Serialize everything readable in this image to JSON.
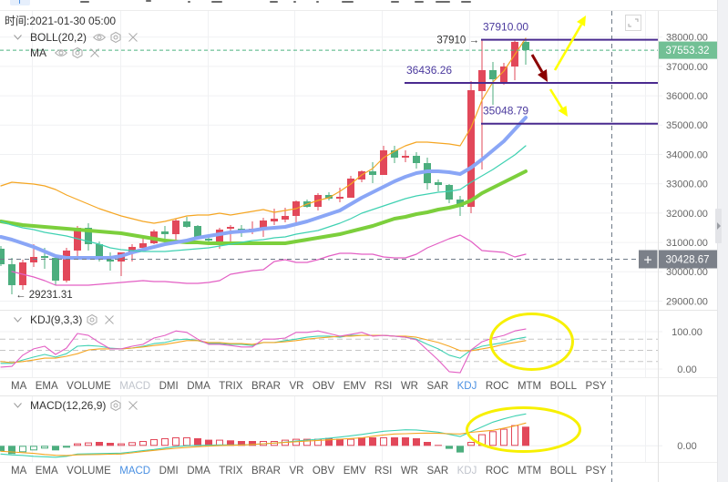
{
  "app": {
    "crosshair_time_label": "时间:2021-01-30 05:00"
  },
  "legend": {
    "main": [
      {
        "name": "BOLL(20,2)",
        "icons": [
          "chevron-down-icon",
          "eye-icon",
          "settings-icon",
          "close-icon"
        ]
      },
      {
        "name": "MA",
        "icons": [
          "eye-icon",
          "settings-icon",
          "close-icon"
        ]
      }
    ],
    "kdj": {
      "name": "KDJ(9,3,3)",
      "icons": [
        "chevron-down-icon",
        "settings-icon",
        "close-icon"
      ]
    },
    "macd": {
      "name": "MACD(12,26,9)",
      "icons": [
        "chevron-down-icon",
        "settings-icon",
        "close-icon"
      ]
    }
  },
  "price_axis": {
    "ticks": [
      "38000.00",
      "37000.00",
      "36000.00",
      "35000.00",
      "34000.00",
      "33000.00",
      "32000.00",
      "31000.00",
      "30000.00",
      "29000.00"
    ],
    "current_price": "37553.32",
    "crosshair_price": "30428.67",
    "crosshair_plus": "+"
  },
  "kdj_axis": {
    "ticks": [
      "100.00",
      "0.00"
    ]
  },
  "macd_axis": {
    "ticks": [
      "0.00"
    ]
  },
  "annotations": {
    "levels": [
      {
        "label": "37910.00",
        "price": 37910,
        "start_index": 44
      },
      {
        "label": "36436.26",
        "price": 36436.26,
        "start_index": 37
      },
      {
        "label": "35048.79",
        "price": 35048.79,
        "start_index": 44
      }
    ],
    "high_marker": {
      "text": "37910 →",
      "price": 37910,
      "index": 44
    },
    "low_marker": {
      "text": "← 29231.31",
      "price": 29231.31,
      "index": 1
    }
  },
  "indicator_tabs": [
    "MA",
    "EMA",
    "VOLUME",
    "MACD",
    "DMI",
    "DMA",
    "TRIX",
    "BRAR",
    "VR",
    "OBV",
    "EMV",
    "RSI",
    "WR",
    "SAR",
    "KDJ",
    "ROC",
    "MTM",
    "BOLL",
    "PSY"
  ],
  "kdj_panel": {
    "active_tab": "KDJ",
    "disabled_tab": "MACD"
  },
  "macd_panel": {
    "active_tab": "MACD",
    "disabled_tab": "KDJ"
  },
  "colors": {
    "candle_up": "#e2485a",
    "candle_down": "#4cae7e",
    "annotation_line": "#4a2a8f",
    "annotation_text": "#4b3a9e",
    "highlight_yellow": "#ffff00",
    "arrow_dark_red": "#8b0000",
    "current_price_bg": "#72c095",
    "crosshair_bg": "#7b8089",
    "tab_active": "#4a90e2",
    "tab_disabled": "#c0c4cc"
  },
  "chart_data": [
    {
      "type": "candlestick",
      "title": "",
      "xlabel": "",
      "ylabel": "",
      "crosshair_time": "2021-01-30 05:00",
      "ylim": [
        29000,
        38000
      ],
      "yticks": [
        38000,
        37000,
        36000,
        35000,
        34000,
        33000,
        32000,
        31000,
        30000,
        29000
      ],
      "grid": true,
      "legend": [
        "BOLL(20,2)",
        "MA"
      ],
      "current_price": 37553.32,
      "candles_ohlc": [
        [
          30786,
          30879,
          30196,
          30258
        ],
        [
          30258,
          30475,
          29231.31,
          29544
        ],
        [
          29544,
          30413,
          29388,
          30320
        ],
        [
          30320,
          30941,
          30165,
          30506
        ],
        [
          30537,
          30817,
          30103,
          30475
        ],
        [
          30475,
          30475,
          29544,
          29699
        ],
        [
          29699,
          30817,
          29637,
          30724
        ],
        [
          30724,
          31562,
          30506,
          31500
        ],
        [
          31500,
          31655,
          30724,
          30941
        ],
        [
          30941,
          31034,
          30351,
          30475
        ],
        [
          30413,
          30661,
          30040,
          30351
        ],
        [
          30351,
          30661,
          29854,
          30661
        ],
        [
          30630,
          30941,
          30351,
          30848
        ],
        [
          30817,
          31127,
          30786,
          30972
        ],
        [
          30972,
          31438,
          30941,
          31376
        ],
        [
          31376,
          31562,
          31096,
          31283
        ],
        [
          31283,
          31810,
          31096,
          31748
        ],
        [
          31717,
          31873,
          31500,
          31531
        ],
        [
          31562,
          31593,
          31096,
          31127
        ],
        [
          31127,
          31283,
          30972,
          31065
        ],
        [
          31003,
          31500,
          30786,
          31438
        ],
        [
          31469,
          31593,
          31034,
          31531
        ],
        [
          31469,
          31593,
          31190,
          31407
        ],
        [
          31438,
          31717,
          31283,
          31469
        ],
        [
          31438,
          31841,
          31190,
          31748
        ],
        [
          31717,
          32152,
          31593,
          31810
        ],
        [
          31779,
          32183,
          31686,
          31904
        ],
        [
          31904,
          32431,
          31655,
          32400
        ],
        [
          32400,
          32462,
          32183,
          32214
        ],
        [
          32214,
          32680,
          32090,
          32618
        ],
        [
          32618,
          32711,
          32431,
          32493
        ],
        [
          32493,
          32866,
          32369,
          32556
        ],
        [
          32524,
          33270,
          32524,
          33177
        ],
        [
          33146,
          33457,
          33053,
          33425
        ],
        [
          33425,
          33736,
          33022,
          33301
        ],
        [
          33301,
          34295,
          33301,
          34140
        ],
        [
          34140,
          34295,
          33705,
          33891
        ],
        [
          33891,
          34140,
          33736,
          33953
        ],
        [
          33953,
          34078,
          33519,
          33705
        ],
        [
          33705,
          33891,
          32804,
          33022
        ],
        [
          33053,
          33146,
          32742,
          32959
        ],
        [
          32959,
          32990,
          32338,
          32462
        ],
        [
          32462,
          32587,
          31904,
          32214
        ],
        [
          32214,
          36500,
          31997,
          36190
        ],
        [
          36159,
          37910,
          33488,
          36873
        ],
        [
          36873,
          37152,
          35693,
          36562
        ],
        [
          36407,
          37121,
          36376,
          36997
        ],
        [
          36997,
          37880,
          36531,
          37836
        ],
        [
          37836,
          37890,
          37059,
          37553.32
        ]
      ],
      "series": [
        {
          "name": "MA (green)",
          "color": "#7ccf3c",
          "width": 4,
          "values": [
            31717,
            31655,
            31593,
            31562,
            31531,
            31500,
            31469,
            31438,
            31407,
            31376,
            31344,
            31314,
            31252,
            31190,
            31127,
            31065,
            31034,
            31003,
            31003,
            30972,
            30972,
            30972,
            30972,
            30972,
            30972,
            30972,
            30972,
            31034,
            31096,
            31158,
            31221,
            31283,
            31376,
            31469,
            31562,
            31686,
            31810,
            31873,
            31966,
            32028,
            32121,
            32183,
            32276,
            32431,
            32680,
            32866,
            33053,
            33239,
            33425
          ]
        },
        {
          "name": "BOLL(20,2) mid",
          "color": "#8aa6f6",
          "width": 4,
          "values": [
            31190,
            31096,
            30972,
            30848,
            30693,
            30537,
            30475,
            30475,
            30475,
            30475,
            30475,
            30537,
            30661,
            30755,
            30848,
            30941,
            31003,
            31065,
            31158,
            31221,
            31283,
            31344,
            31376,
            31407,
            31469,
            31500,
            31531,
            31624,
            31717,
            31841,
            31966,
            32090,
            32307,
            32524,
            32711,
            32897,
            33084,
            33239,
            33363,
            33425,
            33425,
            33394,
            33332,
            33549,
            33829,
            34140,
            34450,
            34854,
            35258
          ]
        },
        {
          "name": "MA (teal)",
          "color": "#3fd1b2",
          "width": 1.2,
          "values": [
            31717,
            31593,
            31500,
            31438,
            31344,
            31283,
            31221,
            31127,
            31034,
            30941,
            30817,
            30755,
            30724,
            30693,
            30693,
            30693,
            30724,
            30755,
            30786,
            30817,
            30879,
            30941,
            31003,
            31065,
            31096,
            31158,
            31190,
            31283,
            31344,
            31407,
            31531,
            31655,
            31810,
            31997,
            32121,
            32245,
            32369,
            32493,
            32587,
            32649,
            32711,
            32742,
            32804,
            33053,
            33270,
            33488,
            33736,
            33984,
            34295
          ]
        },
        {
          "name": "BOLL(20,2) upper",
          "color": "#f5a623",
          "width": 1.2,
          "values": [
            32928,
            33053,
            33022,
            32990,
            32928,
            32804,
            32618,
            32462,
            32307,
            32152,
            32028,
            31904,
            31810,
            31717,
            31655,
            31717,
            31810,
            31904,
            31934,
            31934,
            31997,
            31934,
            31997,
            32059,
            32121,
            32028,
            32090,
            32152,
            32307,
            32431,
            32524,
            32742,
            32990,
            33301,
            33519,
            33891,
            34109,
            34295,
            34419,
            34419,
            34388,
            34357,
            34295,
            34916,
            35848,
            36469,
            36842,
            37401,
            37960
          ]
        },
        {
          "name": "BOLL(20,2) lower",
          "color": "#e35fc4",
          "width": 1.2,
          "values": [
            null,
            30009,
            29916,
            29823,
            29699,
            29544,
            29544,
            29544,
            29544,
            29575,
            29606,
            29637,
            29668,
            29699,
            29668,
            29668,
            29637,
            29606,
            29606,
            29637,
            29699,
            29916,
            29978,
            30040,
            30071,
            30351,
            30413,
            30320,
            30320,
            30413,
            30537,
            30630,
            30630,
            30599,
            30599,
            30506,
            30475,
            30475,
            30599,
            30817,
            30972,
            31127,
            31252,
            31034,
            30724,
            30693,
            30661,
            30506,
            30599
          ]
        }
      ],
      "horizontal_levels": [
        37910,
        36436.26,
        35048.79
      ],
      "annotations": [
        "yellow arrow up",
        "dark red arrow down",
        "yellow arrow down"
      ]
    },
    {
      "type": "line",
      "title": "KDJ(9,3,3)",
      "ylim": [
        -22,
        161
      ],
      "yticks": [
        100,
        0
      ],
      "guide_lines": [
        80,
        50,
        20
      ],
      "series": [
        {
          "name": "K",
          "color": "#3fd1b2",
          "values": [
            15,
            15,
            24,
            32,
            39,
            32,
            41,
            61,
            63,
            61,
            56,
            54,
            56,
            61,
            68,
            71,
            78,
            80,
            76,
            68,
            68,
            66,
            66,
            63,
            71,
            71,
            76,
            80,
            85,
            88,
            88,
            85,
            90,
            90,
            90,
            90,
            88,
            85,
            80,
            66,
            54,
            37,
            29,
            51,
            61,
            66,
            71,
            80,
            85
          ]
        },
        {
          "name": "D",
          "color": "#f5a623",
          "values": [
            20,
            17,
            20,
            24,
            29,
            29,
            34,
            41,
            51,
            54,
            54,
            54,
            56,
            59,
            63,
            66,
            71,
            76,
            76,
            71,
            71,
            68,
            68,
            66,
            71,
            71,
            73,
            76,
            80,
            83,
            85,
            88,
            88,
            90,
            90,
            90,
            88,
            88,
            85,
            78,
            71,
            61,
            49,
            49,
            54,
            59,
            66,
            71,
            76
          ]
        },
        {
          "name": "J",
          "color": "#e35fc4",
          "values": [
            5,
            7,
            37,
            54,
            61,
            39,
            56,
            95,
            90,
            71,
            54,
            54,
            61,
            66,
            83,
            90,
            102,
            98,
            80,
            66,
            66,
            63,
            59,
            59,
            80,
            80,
            83,
            98,
            98,
            102,
            95,
            88,
            93,
            98,
            88,
            90,
            88,
            85,
            78,
            51,
            24,
            -7,
            -10,
            51,
            73,
            83,
            90,
            102,
            107
          ]
        }
      ],
      "highlight": "yellow ellipse around last candles"
    },
    {
      "type": "bar",
      "title": "MACD(12,26,9)",
      "ylim": [
        -17.7,
        55.3
      ],
      "yticks": [
        0
      ],
      "histogram": [
        -6,
        -9,
        -7,
        -5,
        -3,
        -5,
        -2,
        2.7,
        3.7,
        4.3,
        3.3,
        2.7,
        4,
        5.3,
        7.3,
        8.3,
        9.3,
        9.3,
        8.3,
        6.7,
        6.7,
        6,
        5.3,
        5.3,
        5.3,
        5.3,
        6.7,
        7.7,
        7.7,
        7.7,
        8.7,
        7.7,
        7.7,
        9.3,
        9.3,
        9.3,
        9.3,
        9.3,
        8.3,
        4.3,
        1,
        -3.3,
        -7.3,
        4.3,
        12.7,
        16,
        18.7,
        22.7,
        21
      ],
      "histogram_filled": [
        1,
        1,
        0,
        0,
        0,
        1,
        0,
        0,
        0,
        1,
        1,
        0,
        0,
        0,
        0,
        0,
        0,
        0,
        1,
        1,
        0,
        1,
        1,
        1,
        0,
        0,
        0,
        0,
        0,
        0,
        1,
        1,
        0,
        1,
        1,
        0,
        1,
        1,
        1,
        1,
        1,
        1,
        1,
        0,
        0,
        0,
        0,
        0,
        1
      ],
      "series": [
        {
          "name": "DIF",
          "color": "#3fd1b2",
          "values": [
            -9,
            -10,
            -10.5,
            -11.5,
            -12,
            -12.5,
            -11.5,
            -9,
            -8.7,
            -8.5,
            -8.3,
            -8,
            -6.7,
            -5.3,
            -4,
            -2.4,
            -0.9,
            0.1,
            0.5,
            0.8,
            1,
            1,
            1,
            1.5,
            2.3,
            3,
            4,
            5.2,
            6.3,
            7.3,
            8.4,
            9.6,
            11,
            12.5,
            14.2,
            16,
            16.8,
            17.6,
            17.4,
            16.2,
            15,
            12.6,
            10.2,
            15.5,
            20.8,
            26,
            29.6,
            32.7,
            35
          ]
        },
        {
          "name": "DEA",
          "color": "#f5a623",
          "values": [
            -6,
            -6.7,
            -7.5,
            -8.3,
            -9.5,
            -10.4,
            -10.6,
            -9.9,
            -9.7,
            -9.5,
            -9.2,
            -9,
            -7.7,
            -6.3,
            -5,
            -3.8,
            -2.7,
            -1.8,
            -1,
            -0.3,
            0.2,
            0.6,
            0.9,
            1.5,
            2.3,
            3,
            3.7,
            4.5,
            5.2,
            5.9,
            6.6,
            7.3,
            8,
            8.8,
            10.5,
            11.9,
            13,
            13.3,
            13.7,
            14,
            13.7,
            13.3,
            13,
            14.8,
            16,
            17,
            19.4,
            21.9,
            25
          ]
        }
      ],
      "highlight": "yellow ellipse around last histogram bars"
    }
  ]
}
